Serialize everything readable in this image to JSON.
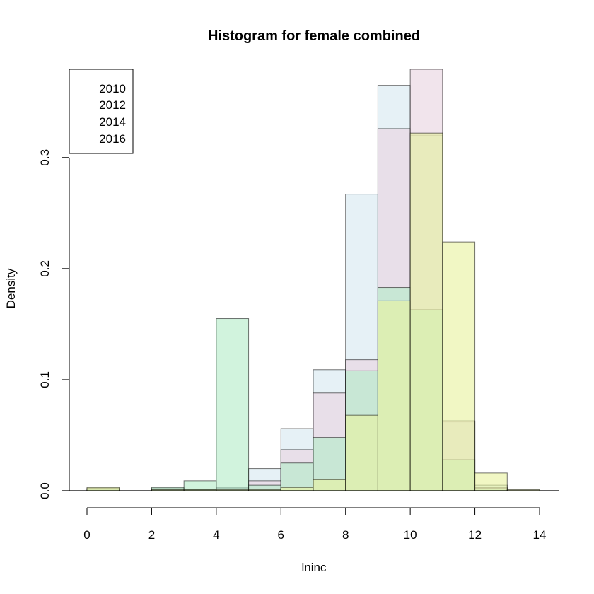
{
  "chart_data": {
    "type": "bar",
    "title": "Histogram for female combined",
    "xlabel": "lninc",
    "ylabel": "Density",
    "xlim": [
      0,
      14
    ],
    "ylim": [
      0,
      0.35
    ],
    "x_ticks": [
      "0",
      "2",
      "4",
      "6",
      "8",
      "10",
      "12",
      "14"
    ],
    "y_ticks": [
      "0.0",
      "0.1",
      "0.2",
      "0.3"
    ],
    "bins": [
      [
        0,
        1
      ],
      [
        1,
        2
      ],
      [
        2,
        3
      ],
      [
        3,
        4
      ],
      [
        4,
        5
      ],
      [
        5,
        6
      ],
      [
        6,
        7
      ],
      [
        7,
        8
      ],
      [
        8,
        9
      ],
      [
        9,
        10
      ],
      [
        10,
        11
      ],
      [
        11,
        12
      ],
      [
        12,
        13
      ],
      [
        13,
        14
      ]
    ],
    "legend_position": "top-left",
    "series": [
      {
        "name": "2010",
        "color": "#d6e9f1",
        "values": [
          0.001,
          0.0,
          0.002,
          0.001,
          0.003,
          0.02,
          0.056,
          0.109,
          0.267,
          0.365,
          0.32,
          0.062,
          0.005,
          0.0
        ]
      },
      {
        "name": "2012",
        "color": "#e9d4e1",
        "values": [
          0.002,
          0.0,
          0.001,
          0.001,
          0.002,
          0.009,
          0.037,
          0.088,
          0.118,
          0.326,
          0.38,
          0.063,
          0.003,
          0.0
        ]
      },
      {
        "name": "2014",
        "color": "#b5ebc8",
        "values": [
          0.002,
          0.0,
          0.003,
          0.009,
          0.155,
          0.005,
          0.025,
          0.048,
          0.108,
          0.183,
          0.163,
          0.028,
          0.002,
          0.0
        ]
      },
      {
        "name": "2016",
        "color": "#e8f2a0",
        "values": [
          0.003,
          0.0,
          0.001,
          0.001,
          0.001,
          0.001,
          0.003,
          0.01,
          0.068,
          0.171,
          0.322,
          0.224,
          0.016,
          0.001
        ]
      }
    ]
  }
}
